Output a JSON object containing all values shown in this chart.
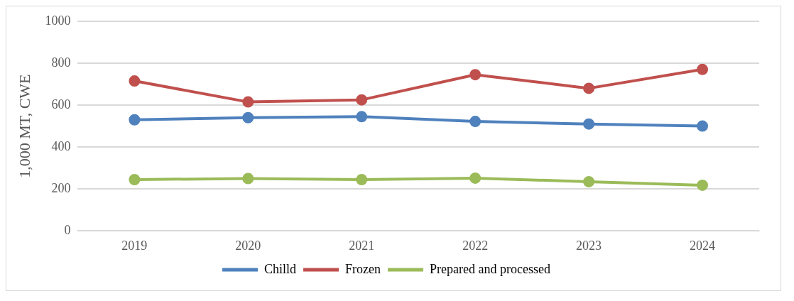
{
  "chart_data": {
    "type": "line",
    "ylabel": "1,000 MT, CWE",
    "categories": [
      "2019",
      "2020",
      "2021",
      "2022",
      "2023",
      "2024"
    ],
    "series": [
      {
        "name": "Chilld",
        "color": "#4f81bd",
        "values": [
          530,
          540,
          545,
          522,
          510,
          500
        ]
      },
      {
        "name": "Frozen",
        "color": "#c0504d",
        "values": [
          715,
          615,
          625,
          745,
          680,
          770
        ]
      },
      {
        "name": "Prepared and processed",
        "color": "#9bbb59",
        "values": [
          245,
          250,
          245,
          252,
          235,
          218
        ]
      }
    ],
    "ylim": [
      0,
      1000
    ],
    "yticks": [
      0,
      200,
      400,
      600,
      800,
      1000
    ],
    "grid": "y",
    "legend": "bottom",
    "marker": "circle",
    "line_style": "solid"
  }
}
